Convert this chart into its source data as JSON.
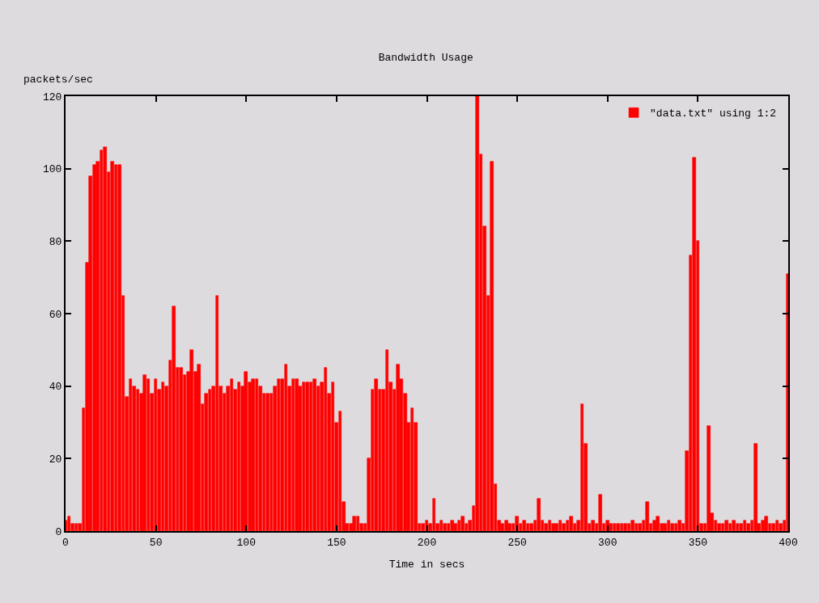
{
  "chart_data": {
    "type": "bar",
    "title": "Bandwidth Usage",
    "xlabel": "Time in secs",
    "ylabel": "packets/sec",
    "x": [
      0,
      2,
      4,
      6,
      8,
      10,
      12,
      14,
      16,
      18,
      20,
      22,
      24,
      26,
      28,
      30,
      32,
      34,
      36,
      38,
      40,
      42,
      44,
      46,
      48,
      50,
      52,
      54,
      56,
      58,
      60,
      62,
      64,
      66,
      68,
      70,
      72,
      74,
      76,
      78,
      80,
      82,
      84,
      86,
      88,
      90,
      92,
      94,
      96,
      98,
      100,
      102,
      104,
      106,
      108,
      110,
      112,
      114,
      116,
      118,
      120,
      122,
      124,
      126,
      128,
      130,
      132,
      134,
      136,
      138,
      140,
      142,
      144,
      146,
      148,
      150,
      152,
      154,
      156,
      158,
      160,
      162,
      164,
      166,
      168,
      170,
      172,
      174,
      176,
      178,
      180,
      182,
      184,
      186,
      188,
      190,
      192,
      194,
      196,
      198,
      200,
      202,
      204,
      206,
      208,
      210,
      212,
      214,
      216,
      218,
      220,
      222,
      224,
      226,
      228,
      230,
      232,
      234,
      236,
      238,
      240,
      242,
      244,
      246,
      248,
      250,
      252,
      254,
      256,
      258,
      260,
      262,
      264,
      266,
      268,
      270,
      272,
      274,
      276,
      278,
      280,
      282,
      284,
      286,
      288,
      290,
      292,
      294,
      296,
      298,
      300,
      302,
      304,
      306,
      308,
      310,
      312,
      314,
      316,
      318,
      320,
      322,
      324,
      326,
      328,
      330,
      332,
      334,
      336,
      338,
      340,
      342,
      344,
      346,
      348,
      350,
      352,
      354,
      356,
      358,
      360,
      362,
      364,
      366,
      368,
      370,
      372,
      374,
      376,
      378,
      380,
      382,
      384,
      386,
      388,
      390,
      392,
      394,
      396,
      398,
      400
    ],
    "series": [
      {
        "name": "\"data.txt\" using 1:2",
        "color": "#ff0000",
        "values": [
          3,
          4,
          2,
          2,
          2,
          34,
          74,
          98,
          101,
          102,
          105,
          106,
          99,
          102,
          101,
          101,
          65,
          37,
          42,
          40,
          39,
          38,
          43,
          42,
          38,
          42,
          39,
          41,
          40,
          47,
          62,
          45,
          45,
          43,
          44,
          50,
          44,
          46,
          35,
          38,
          39,
          40,
          65,
          40,
          38,
          40,
          42,
          39,
          41,
          40,
          44,
          41,
          42,
          42,
          40,
          38,
          38,
          38,
          40,
          42,
          42,
          46,
          40,
          42,
          42,
          40,
          41,
          41,
          41,
          42,
          40,
          41,
          45,
          38,
          41,
          30,
          33,
          8,
          2,
          2,
          4,
          4,
          2,
          2,
          20,
          39,
          42,
          39,
          39,
          50,
          41,
          39,
          46,
          42,
          38,
          30,
          34,
          30,
          2,
          2,
          3,
          2,
          9,
          2,
          3,
          2,
          2,
          3,
          2,
          3,
          4,
          2,
          3,
          7,
          120,
          104,
          84,
          65,
          102,
          13,
          3,
          2,
          3,
          2,
          2,
          4,
          2,
          3,
          2,
          2,
          3,
          9,
          3,
          2,
          3,
          2,
          2,
          3,
          2,
          3,
          4,
          2,
          3,
          35,
          24,
          2,
          3,
          2,
          10,
          2,
          3,
          2,
          2,
          2,
          2,
          2,
          2,
          3,
          2,
          2,
          3,
          8,
          2,
          3,
          4,
          2,
          2,
          3,
          2,
          2,
          3,
          2,
          22,
          76,
          103,
          80,
          2,
          2,
          29,
          5,
          3,
          2,
          2,
          3,
          2,
          3,
          2,
          2,
          3,
          2,
          3,
          24,
          2,
          3,
          4,
          2,
          2,
          3,
          2,
          3,
          71
        ]
      }
    ],
    "xlim": [
      0,
      400
    ],
    "xticks": [
      0,
      50,
      100,
      150,
      200,
      250,
      300,
      350,
      400
    ],
    "ylim": [
      0,
      120
    ],
    "yticks": [
      0,
      20,
      40,
      60,
      80,
      100,
      120
    ],
    "legend": "top right",
    "grid": false
  }
}
